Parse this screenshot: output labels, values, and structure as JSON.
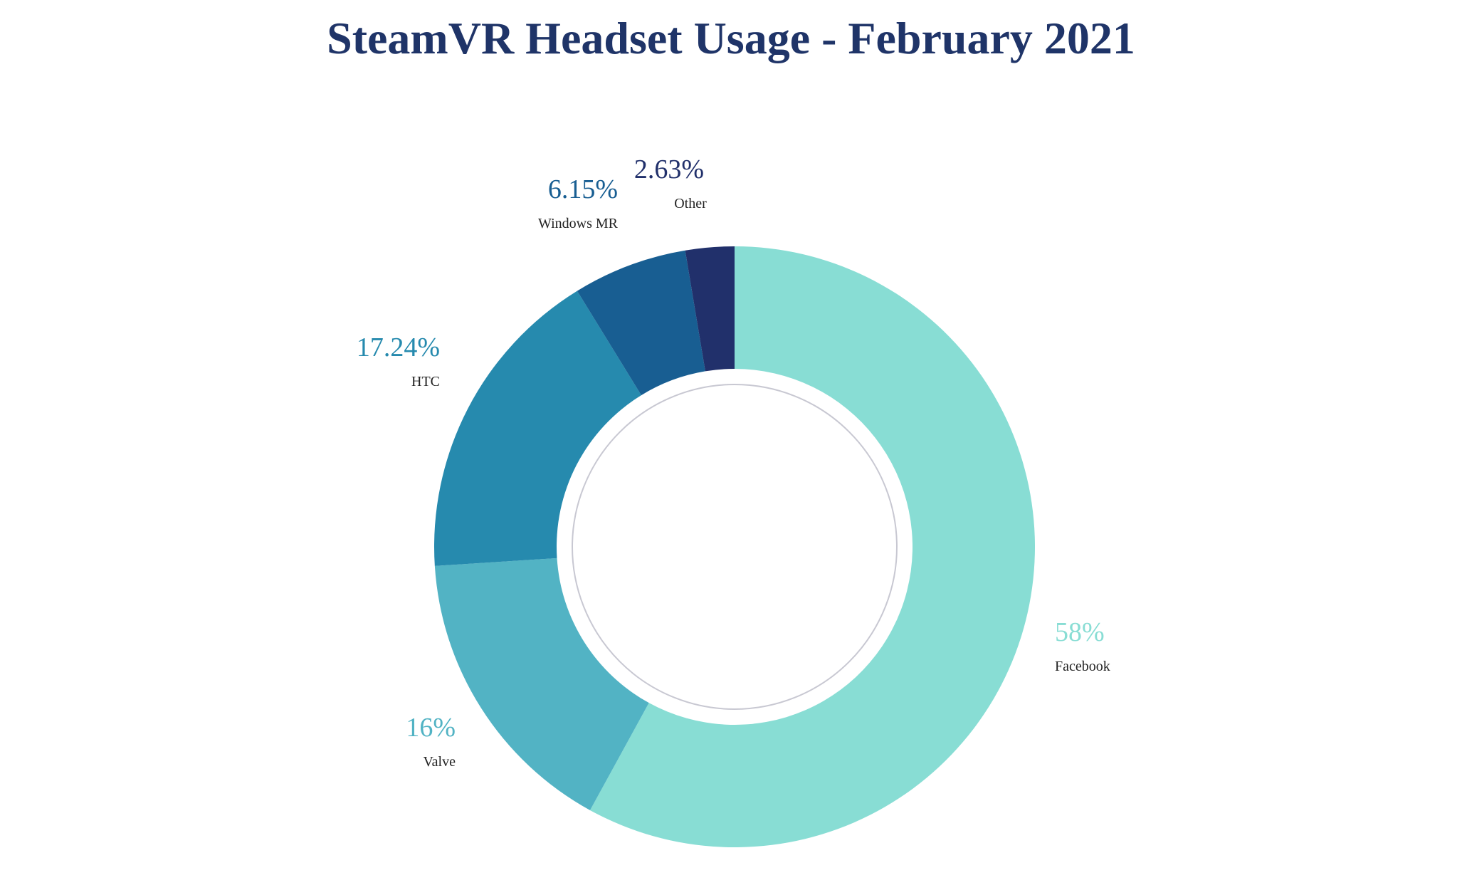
{
  "chart_data": {
    "type": "pie",
    "variant": "donut",
    "title": "SteamVR Headset Usage - February 2021",
    "title_color": "#1f3468",
    "categories": [
      "Facebook",
      "Valve",
      "HTC",
      "Windows MR",
      "Other"
    ],
    "values": [
      58,
      16,
      17.24,
      6.15,
      2.63
    ],
    "value_labels": [
      "58%",
      "16%",
      "17.24%",
      "6.15%",
      "2.63%"
    ],
    "colors": [
      "#88ddd4",
      "#52b3c4",
      "#268aae",
      "#185e92",
      "#21306b"
    ],
    "inner_ring_color": "#c8c8d2",
    "legend": "none"
  }
}
